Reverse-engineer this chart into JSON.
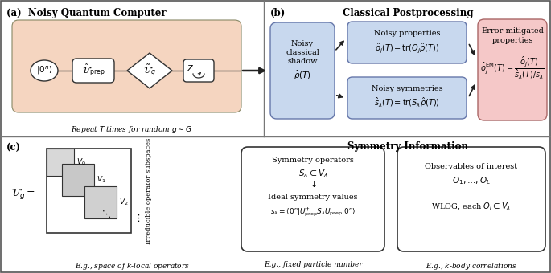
{
  "panel_a_title": "(a)  Noisy Quantum Computer",
  "panel_b_title": "Classical Postprocessing",
  "panel_b_label": "(b)",
  "panel_c_title": "Symmetry Information",
  "panel_c_label": "(c)",
  "repeat_text": "Repeat $T$ times for random $g \\sim G$",
  "noisy_shadow_line1": "Noisy",
  "noisy_shadow_line2": "classical",
  "noisy_shadow_line3": "shadow",
  "noisy_shadow_line4": "$\\hat{\\rho}(T)$",
  "noisy_props_title": "Noisy properties",
  "noisy_props_eq": "$\\hat{o}_j(T) = \\mathrm{tr}(O_j\\hat{\\rho}(T))$",
  "noisy_sym_title": "Noisy symmetries",
  "noisy_sym_eq": "$\\hat{s}_\\lambda(T) = \\mathrm{tr}(S_\\lambda\\hat{\\rho}(T))$",
  "em_line1": "Error-mitigated",
  "em_line2": "properties",
  "em_eq": "$\\hat{o}_j^\\mathrm{EM}(T) = \\dfrac{\\hat{o}_j(T)}{\\hat{s}_\\lambda(T)/s_\\lambda}$",
  "sym_line1": "Symmetry operators",
  "sym_line2": "$S_\\lambda \\in V_\\lambda$",
  "sym_line3": "$\\downarrow$",
  "sym_line4": "Ideal symmetry values",
  "sym_line5": "$s_\\lambda = \\langle 0^n|U^\\dagger_\\mathrm{prep}S_\\lambda U_\\mathrm{prep}|0^n\\rangle$",
  "obs_line1": "Observables of interest",
  "obs_line2": "$O_1,\\ldots,O_L$",
  "obs_line3": "",
  "obs_line4": "WLOG, each $O_j \\in V_\\lambda$",
  "eg_c1": "E.g., space of $k$-local operators",
  "eg_c2": "E.g., fixed particle number",
  "eg_c3": "E.g., $k$-body correlations",
  "irred_text": "Irreducible operator subspaces",
  "ug_label": "$\\mathcal{U}_g =$",
  "v0": "$V_0$",
  "v1": "$V_1$",
  "v2": "$V_2$",
  "bg_salmon": "#f5d5c0",
  "bg_lightblue": "#c8d8ee",
  "bg_lightpink": "#f5c8c8",
  "bg_white": "#ffffff",
  "divider_color": "#777777",
  "border_color": "#555555"
}
